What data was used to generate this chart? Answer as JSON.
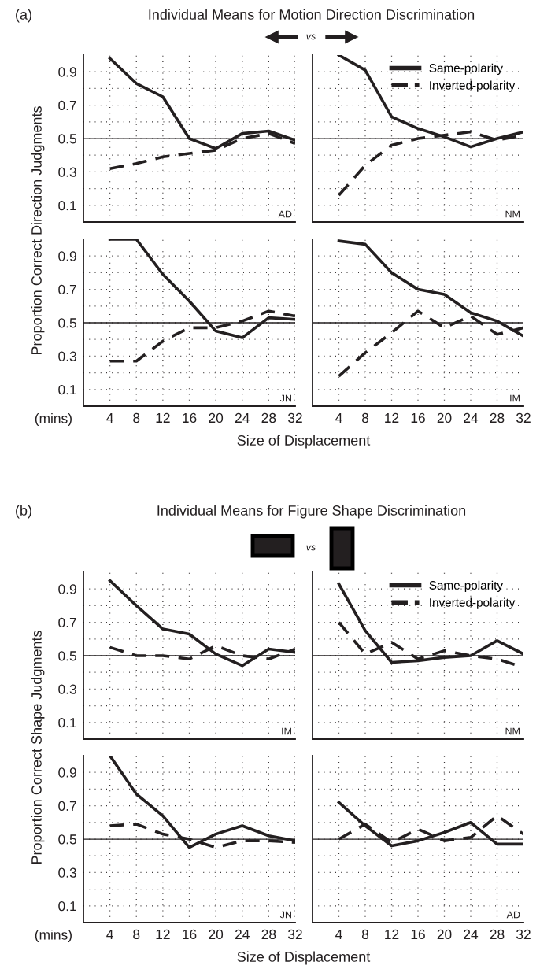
{
  "chart_data": [
    {
      "type": "line",
      "title": "Individual Means for Motion Direction Discrimination",
      "annotations": [
        "(a)",
        "vs",
        "AD"
      ],
      "x": [
        4,
        8,
        12,
        16,
        20,
        24,
        28,
        32
      ],
      "xlim": [
        0,
        32
      ],
      "ylim": [
        0,
        1
      ],
      "xticks": [
        4,
        8,
        12,
        16,
        20,
        24,
        28,
        32
      ],
      "yticks": [
        0.1,
        {
          "value": 0.2,
          "label": null
        },
        0.3,
        {
          "value": 0.4,
          "label": null
        },
        0.5,
        {
          "value": 0.6,
          "label": null
        },
        0.7,
        {
          "value": 0.8,
          "label": null
        },
        0.9
      ],
      "tick_labels": "y",
      "grid": true,
      "ref_lines": [
        {
          "axis": "y",
          "value": 0.5,
          "label": null
        }
      ],
      "series": [
        {
          "color": "#231f20",
          "line_style": "solid",
          "values": [
            0.98,
            0.83,
            0.75,
            0.5,
            0.44,
            0.53,
            0.545,
            0.49
          ]
        },
        {
          "color": "#231f20",
          "line_style": "dashed",
          "values": [
            0.32,
            0.35,
            0.39,
            0.41,
            0.43,
            0.5,
            0.53,
            0.47
          ]
        }
      ]
    },
    {
      "type": "line",
      "annotations": [
        "NM"
      ],
      "x": [
        4,
        8,
        12,
        16,
        20,
        24,
        28,
        32
      ],
      "xlim": [
        0,
        32
      ],
      "ylim": [
        0,
        1
      ],
      "xticks": [
        4,
        8,
        12,
        16,
        20,
        24,
        28,
        32
      ],
      "yticks": [
        0.1,
        {
          "value": 0.2,
          "label": null
        },
        0.3,
        {
          "value": 0.4,
          "label": null
        },
        0.5,
        {
          "value": 0.6,
          "label": null
        },
        0.7,
        {
          "value": 0.8,
          "label": null
        },
        0.9
      ],
      "tick_labels": false,
      "grid": true,
      "legend": "top right",
      "ref_lines": [
        {
          "axis": "y",
          "value": 0.5,
          "label": null
        }
      ],
      "series": [
        {
          "name": "Same-polarity",
          "color": "#231f20",
          "line_style": "solid",
          "values": [
            1.0,
            0.91,
            0.63,
            0.56,
            0.51,
            0.45,
            0.5,
            0.54
          ]
        },
        {
          "name": "Inverted-polarity",
          "color": "#231f20",
          "line_style": "dashed",
          "values": [
            0.16,
            0.34,
            0.46,
            0.5,
            0.52,
            0.54,
            0.49,
            0.52
          ]
        }
      ]
    },
    {
      "type": "line",
      "ylabel": "Proportion Correct Direction Judgments",
      "xlabel": "Size of Displacement",
      "annotations": [
        "(mins)",
        "JN"
      ],
      "x": [
        4,
        8,
        12,
        16,
        20,
        24,
        28,
        32
      ],
      "xlim": [
        0,
        32
      ],
      "ylim": [
        0,
        1
      ],
      "xticks": [
        4,
        8,
        12,
        16,
        20,
        24,
        28,
        32
      ],
      "yticks": [
        0.1,
        {
          "value": 0.2,
          "label": null
        },
        0.3,
        {
          "value": 0.4,
          "label": null
        },
        0.5,
        {
          "value": 0.6,
          "label": null
        },
        0.7,
        {
          "value": 0.8,
          "label": null
        },
        0.9
      ],
      "grid": true,
      "ref_lines": [
        {
          "axis": "y",
          "value": 0.5,
          "label": null
        }
      ],
      "series": [
        {
          "color": "#231f20",
          "line_style": "solid",
          "values": [
            1.0,
            1.0,
            0.79,
            0.63,
            0.45,
            0.41,
            0.53,
            0.52
          ]
        },
        {
          "color": "#231f20",
          "line_style": "dashed",
          "values": [
            0.27,
            0.27,
            0.39,
            0.47,
            0.47,
            0.51,
            0.57,
            0.54
          ]
        }
      ]
    },
    {
      "type": "line",
      "annotations": [
        "IM"
      ],
      "x": [
        4,
        8,
        12,
        16,
        20,
        24,
        28,
        32
      ],
      "xlim": [
        0,
        32
      ],
      "ylim": [
        0,
        1
      ],
      "xticks": [
        4,
        8,
        12,
        16,
        20,
        24,
        28,
        32
      ],
      "yticks": [
        0.1,
        {
          "value": 0.2,
          "label": null
        },
        0.3,
        {
          "value": 0.4,
          "label": null
        },
        0.5,
        {
          "value": 0.6,
          "label": null
        },
        0.7,
        {
          "value": 0.8,
          "label": null
        },
        0.9
      ],
      "tick_labels": "x",
      "grid": true,
      "ref_lines": [
        {
          "axis": "y",
          "value": 0.5,
          "label": null
        }
      ],
      "series": [
        {
          "color": "#231f20",
          "line_style": "solid",
          "values": [
            0.99,
            0.97,
            0.8,
            0.7,
            0.67,
            0.56,
            0.51,
            0.42
          ]
        },
        {
          "color": "#231f20",
          "line_style": "dashed",
          "values": [
            0.18,
            0.32,
            0.44,
            0.57,
            0.47,
            0.54,
            0.43,
            0.47
          ]
        }
      ]
    },
    {
      "type": "line",
      "title": "Individual Means for Figure Shape Discrimination",
      "annotations": [
        "(b)",
        "vs",
        "IM"
      ],
      "x": [
        4,
        8,
        12,
        16,
        20,
        24,
        28,
        32
      ],
      "xlim": [
        0,
        32
      ],
      "ylim": [
        0,
        1
      ],
      "xticks": [
        4,
        8,
        12,
        16,
        20,
        24,
        28,
        32
      ],
      "yticks": [
        0.1,
        {
          "value": 0.2,
          "label": null
        },
        0.3,
        {
          "value": 0.4,
          "label": null
        },
        0.5,
        {
          "value": 0.6,
          "label": null
        },
        0.7,
        {
          "value": 0.8,
          "label": null
        },
        0.9
      ],
      "tick_labels": "y",
      "grid": true,
      "ref_lines": [
        {
          "axis": "y",
          "value": 0.5,
          "label": null
        }
      ],
      "series": [
        {
          "color": "#231f20",
          "line_style": "solid",
          "values": [
            0.95,
            0.8,
            0.66,
            0.63,
            0.51,
            0.44,
            0.54,
            0.52
          ]
        },
        {
          "color": "#231f20",
          "line_style": "dashed",
          "values": [
            0.55,
            0.5,
            0.5,
            0.48,
            0.56,
            0.5,
            0.48,
            0.54
          ]
        }
      ]
    },
    {
      "type": "line",
      "annotations": [
        "NM"
      ],
      "x": [
        4,
        8,
        12,
        16,
        20,
        24,
        28,
        32
      ],
      "xlim": [
        0,
        32
      ],
      "ylim": [
        0,
        1
      ],
      "xticks": [
        4,
        8,
        12,
        16,
        20,
        24,
        28,
        32
      ],
      "yticks": [
        0.1,
        {
          "value": 0.2,
          "label": null
        },
        0.3,
        {
          "value": 0.4,
          "label": null
        },
        0.5,
        {
          "value": 0.6,
          "label": null
        },
        0.7,
        {
          "value": 0.8,
          "label": null
        },
        0.9
      ],
      "tick_labels": false,
      "grid": true,
      "legend": "top right",
      "ref_lines": [
        {
          "axis": "y",
          "value": 0.5,
          "label": null
        }
      ],
      "series": [
        {
          "name": "Same-polarity",
          "color": "#231f20",
          "line_style": "solid",
          "values": [
            0.93,
            0.65,
            0.46,
            0.47,
            0.49,
            0.5,
            0.59,
            0.51
          ]
        },
        {
          "name": "Inverted-polarity",
          "color": "#231f20",
          "line_style": "dashed",
          "values": [
            0.7,
            0.51,
            0.58,
            0.48,
            0.53,
            0.5,
            0.48,
            0.43
          ]
        }
      ]
    },
    {
      "type": "line",
      "ylabel": "Proportion Correct Shape Judgments",
      "xlabel": "Size of Displacement",
      "annotations": [
        "(mins)",
        "JN"
      ],
      "x": [
        4,
        8,
        12,
        16,
        20,
        24,
        28,
        32
      ],
      "xlim": [
        0,
        32
      ],
      "ylim": [
        0,
        1
      ],
      "xticks": [
        4,
        8,
        12,
        16,
        20,
        24,
        28,
        32
      ],
      "yticks": [
        0.1,
        {
          "value": 0.2,
          "label": null
        },
        0.3,
        {
          "value": 0.4,
          "label": null
        },
        0.5,
        {
          "value": 0.6,
          "label": null
        },
        0.7,
        {
          "value": 0.8,
          "label": null
        },
        0.9
      ],
      "grid": true,
      "ref_lines": [
        {
          "axis": "y",
          "value": 0.5,
          "label": null
        }
      ],
      "series": [
        {
          "color": "#231f20",
          "line_style": "solid",
          "values": [
            1.0,
            0.77,
            0.64,
            0.45,
            0.53,
            0.58,
            0.52,
            0.49
          ]
        },
        {
          "color": "#231f20",
          "line_style": "dashed",
          "values": [
            0.58,
            0.59,
            0.53,
            0.5,
            0.45,
            0.49,
            0.49,
            0.48
          ]
        }
      ]
    },
    {
      "type": "line",
      "annotations": [
        "AD"
      ],
      "x": [
        4,
        8,
        12,
        16,
        20,
        24,
        28,
        32
      ],
      "xlim": [
        0,
        32
      ],
      "ylim": [
        0,
        1
      ],
      "xticks": [
        4,
        8,
        12,
        16,
        20,
        24,
        28,
        32
      ],
      "yticks": [
        0.1,
        {
          "value": 0.2,
          "label": null
        },
        0.3,
        {
          "value": 0.4,
          "label": null
        },
        0.5,
        {
          "value": 0.6,
          "label": null
        },
        0.7,
        {
          "value": 0.8,
          "label": null
        },
        0.9
      ],
      "tick_labels": "x",
      "grid": true,
      "ref_lines": [
        {
          "axis": "y",
          "value": 0.5,
          "label": null
        }
      ],
      "series": [
        {
          "color": "#231f20",
          "line_style": "solid",
          "values": [
            0.72,
            0.58,
            0.46,
            0.49,
            0.54,
            0.6,
            0.47,
            0.47
          ]
        },
        {
          "color": "#231f20",
          "line_style": "dashed",
          "values": [
            0.5,
            0.59,
            0.48,
            0.56,
            0.49,
            0.51,
            0.64,
            0.53
          ]
        }
      ]
    }
  ]
}
